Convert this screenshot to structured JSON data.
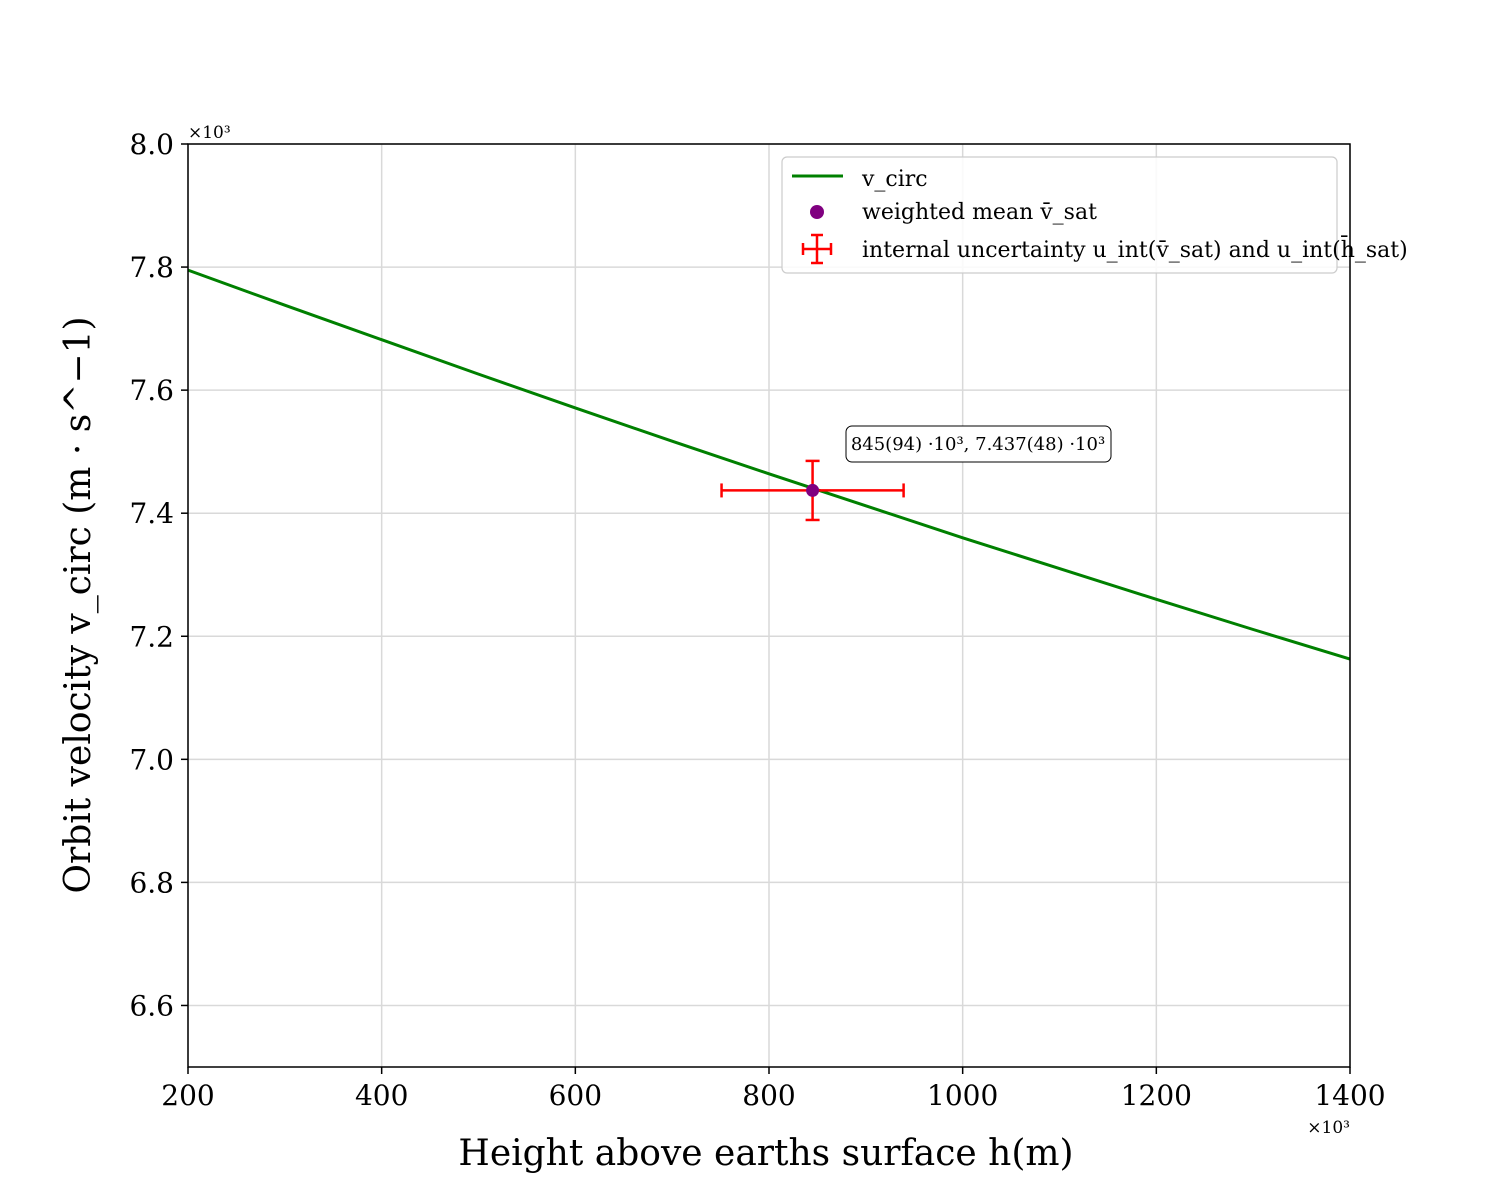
{
  "chart_data": {
    "type": "line",
    "xlabel": "Height above earths surface h(m)",
    "ylabel": "Orbit velocity v_circ   (m · s^−1)",
    "x_multiplier": "×10³",
    "y_multiplier": "×10³",
    "xlim": [
      200,
      1400
    ],
    "ylim": [
      6.5,
      8.0
    ],
    "x_ticks": [
      200,
      400,
      600,
      800,
      1000,
      1200,
      1400
    ],
    "x_tick_labels": [
      "200",
      "400",
      "600",
      "800",
      "1000",
      "1200",
      "1400"
    ],
    "y_ticks": [
      6.6,
      6.8,
      7.0,
      7.2,
      7.4,
      7.6,
      7.8,
      8.0
    ],
    "y_tick_labels": [
      "6.6",
      "6.8",
      "7.0",
      "7.2",
      "7.4",
      "7.6",
      "7.8",
      "8.0"
    ],
    "grid": true,
    "legend_position": "top-right",
    "legend": [
      {
        "label": "v_circ",
        "kind": "line",
        "color": "#008000"
      },
      {
        "label": "weighted mean v̄_sat",
        "kind": "marker",
        "color": "#800080"
      },
      {
        "label": "internal uncertainty u_int(v̄_sat) and u_int(h̄_sat)",
        "kind": "errorbar",
        "color": "#ff0000"
      }
    ],
    "series": [
      {
        "name": "v_circ",
        "color": "#008000",
        "x": [
          200,
          300,
          400,
          500,
          600,
          700,
          800,
          900,
          1000,
          1100,
          1200,
          1300,
          1400
        ],
        "y": [
          7.795,
          7.738,
          7.682,
          7.626,
          7.571,
          7.517,
          7.464,
          7.412,
          7.36,
          7.31,
          7.26,
          7.211,
          7.163
        ]
      }
    ],
    "point": {
      "name": "weighted mean v̄_sat",
      "x": 845,
      "y": 7.437,
      "x_err": 94,
      "y_err": 0.048,
      "marker_color": "#800080",
      "errorbar_color": "#ff0000"
    },
    "annotation": "845(94) ·10³, 7.437(48) ·10³"
  }
}
